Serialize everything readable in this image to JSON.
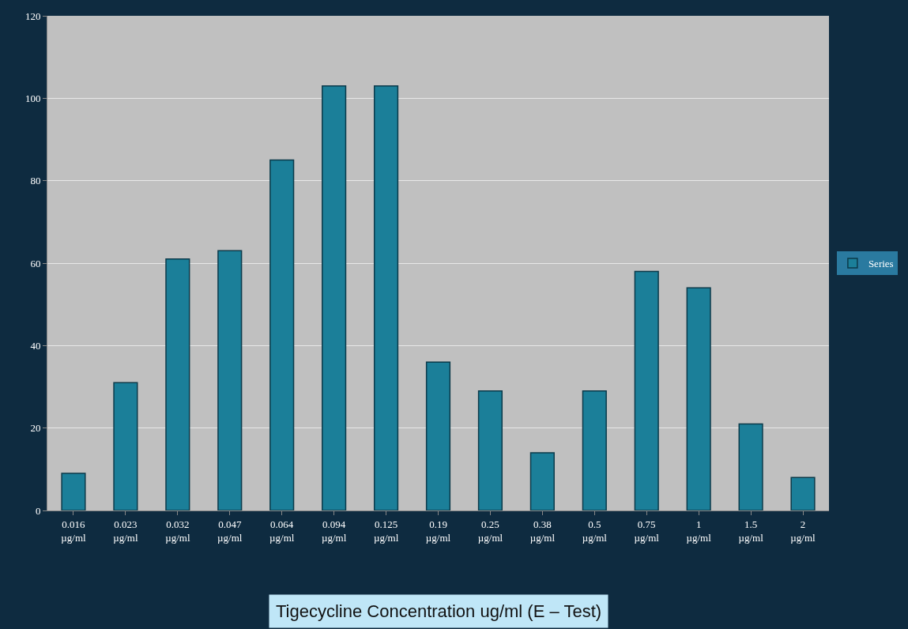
{
  "chart_data": {
    "type": "bar",
    "xlabel": "Tigecycline Concentration ug/ml (E – Test)",
    "categories": [
      "0.016 µg/ml",
      "0.023 µg/ml",
      "0.032 µg/ml",
      "0.047 µg/ml",
      "0.064 µg/ml",
      "0.094 µg/ml",
      "0.125 µg/ml",
      "0.19 µg/ml",
      "0.25 µg/ml",
      "0.38 µg/ml",
      "0.5 µg/ml",
      "0.75 µg/ml",
      "1 µg/ml",
      "1.5 µg/ml",
      "2 µg/ml"
    ],
    "series": [
      {
        "name": "Series",
        "color": "#1b7f99",
        "values": [
          9,
          31,
          61,
          63,
          85,
          103,
          103,
          36,
          29,
          14,
          29,
          58,
          54,
          21,
          8
        ]
      }
    ],
    "ylim": [
      0,
      120
    ],
    "yticks": [
      0,
      20,
      40,
      60,
      80,
      100,
      120
    ],
    "grid": "y",
    "legend": "right"
  }
}
